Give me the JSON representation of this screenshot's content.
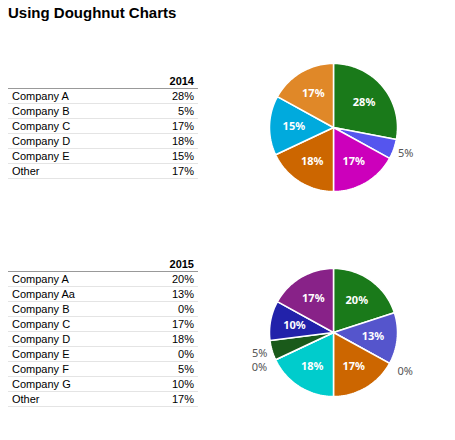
{
  "chart_data": [
    {
      "type": "pie",
      "title": "Using Doughnut Charts",
      "subtitle": "2014",
      "categories": [
        "Company A",
        "Company B",
        "Company C",
        "Company D",
        "Company E",
        "Other"
      ],
      "values": [
        28,
        5,
        17,
        18,
        15,
        17
      ],
      "value_labels": [
        "28%",
        "5%",
        "17%",
        "18%",
        "15%",
        "17%"
      ],
      "colors": [
        "#1a7a1a",
        "#5555ee",
        "#cc00bb",
        "#cc6600",
        "#00aadd",
        "#e08828"
      ],
      "data_labels": true
    },
    {
      "type": "pie",
      "subtitle": "2015",
      "categories": [
        "Company A",
        "Company Aa",
        "Company B",
        "Company C",
        "Company D",
        "Company E",
        "Company F",
        "Company G",
        "Other"
      ],
      "values": [
        20,
        13,
        0,
        17,
        18,
        0,
        5,
        10,
        17
      ],
      "value_labels": [
        "20%",
        "13%",
        "0%",
        "17%",
        "18%",
        "0%",
        "5%",
        "10%",
        "17%"
      ],
      "colors": [
        "#1a7a1a",
        "#5555cc",
        "#bbbbbb",
        "#cc6600",
        "#00cccc",
        "#bbbbbb",
        "#1a5a1a",
        "#2222aa",
        "#882288"
      ],
      "data_labels": true
    }
  ]
}
